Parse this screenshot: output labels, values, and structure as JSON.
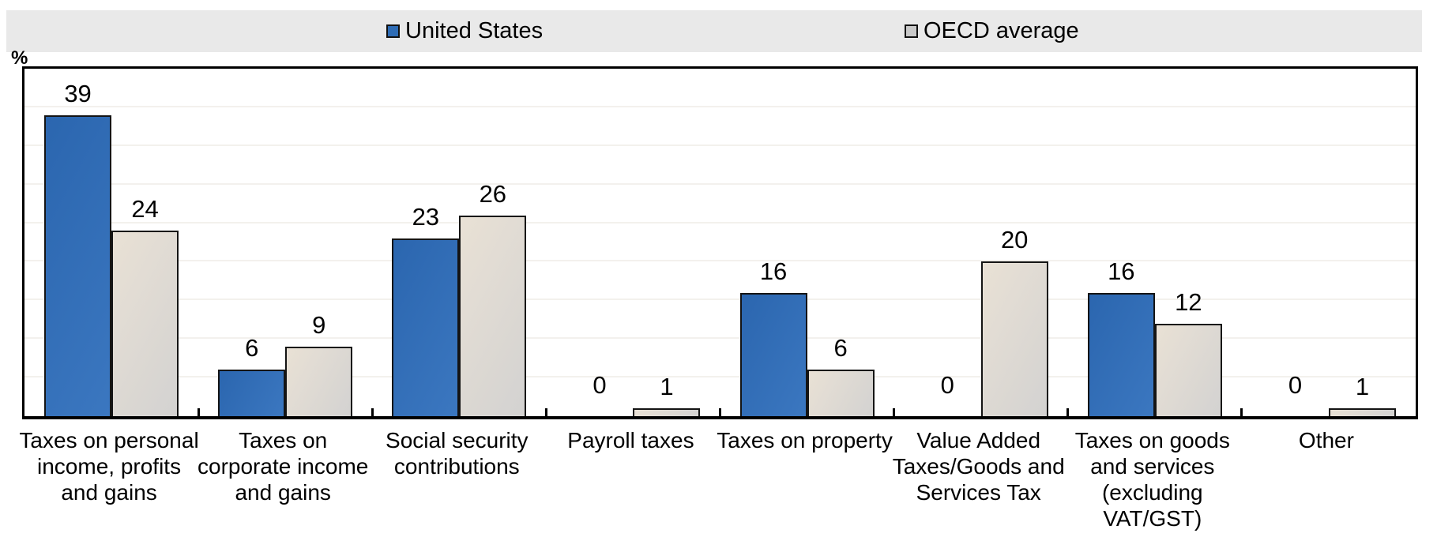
{
  "chart_data": {
    "type": "bar",
    "title": "",
    "categories": [
      "Taxes on personal income, profits and gains",
      "Taxes on corporate income and gains",
      "Social security contributions",
      "Payroll taxes",
      "Taxes on property",
      "Value Added Taxes/Goods and Services Tax",
      "Taxes on goods and services (excluding VAT/GST)",
      "Other"
    ],
    "series": [
      {
        "name": "United States",
        "values": [
          39,
          6,
          23,
          0,
          16,
          0,
          16,
          0
        ],
        "color": "#2e6cb5",
        "color_start": "#2b66af",
        "color_end": "#3b77c0"
      },
      {
        "name": "OECD average",
        "values": [
          24,
          9,
          26,
          1,
          6,
          20,
          12,
          1
        ],
        "color": "#d6d3cd",
        "color_start": "#e9e1d5",
        "color_end": "#d3d2d1"
      }
    ],
    "xlabel": "",
    "ylabel": "%",
    "ylim": [
      0,
      45
    ],
    "gridline_step": 5,
    "grid": "faint horizontal gridlines every 5",
    "legend_position": "top strip",
    "value_labels": "above each bar",
    "y_axis_ticks_shown": "none (values labeled on bars)",
    "legend_strip_color": "#e9e9e9",
    "bar_border_color": "#141414"
  }
}
